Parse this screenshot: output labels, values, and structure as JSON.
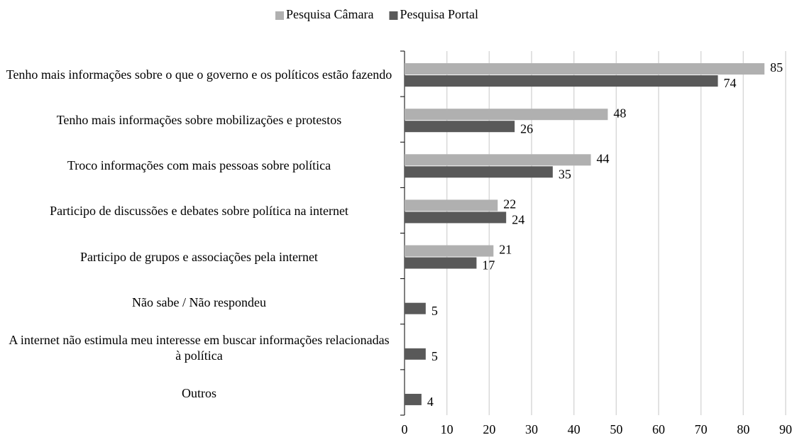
{
  "chart_data": {
    "type": "hbar",
    "categories": [
      "Tenho mais informações sobre o que o governo e os políticos estão fazendo",
      "Tenho mais informações sobre mobilizações e protestos",
      "Troco informações com mais pessoas sobre política",
      "Participo de discussões e debates sobre política na internet",
      "Participo de grupos e associações pela internet",
      "Não sabe / Não respondeu",
      "A internet não estimula meu interesse em buscar informações relacionadas à política",
      "Outros"
    ],
    "series": [
      {
        "name": "Pesquisa Câmara",
        "color": "#b0b0b0",
        "values": [
          85,
          48,
          44,
          22,
          21,
          null,
          null,
          null
        ]
      },
      {
        "name": "Pesquisa Portal",
        "color": "#595959",
        "values": [
          74,
          26,
          35,
          24,
          17,
          5,
          5,
          4
        ]
      }
    ],
    "xlim": [
      0,
      90
    ],
    "xticks": [
      0,
      10,
      20,
      30,
      40,
      50,
      60,
      70,
      80,
      90
    ],
    "grid": true,
    "legend": "top"
  }
}
